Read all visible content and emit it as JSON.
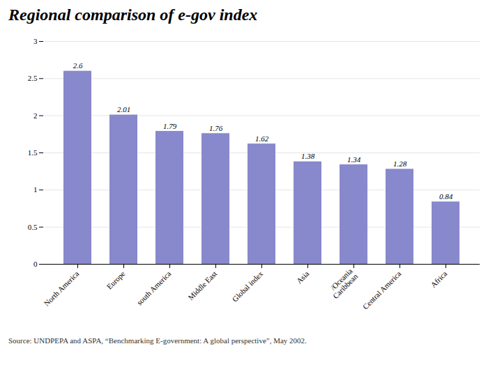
{
  "chart_data": {
    "type": "bar",
    "title": "Regional comparison of e-gov index",
    "categories": [
      "North America",
      "Europe",
      "south America",
      "Middle East",
      "Global index",
      "Asia",
      "/Oceania\nCaribbean",
      "Central America",
      "Africa"
    ],
    "values": [
      2.6,
      2.01,
      1.79,
      1.76,
      1.62,
      1.38,
      1.34,
      1.28,
      0.84
    ],
    "color": "#8888cc",
    "ylim": [
      0,
      3
    ],
    "yticks": [
      0,
      0.5,
      1,
      1.5,
      2,
      2.5,
      3
    ],
    "grid": true,
    "data_labels": true,
    "caption": "Source: UNDPEPA and ASPA, “Benchmarking E-government: A global perspective”, May 2002."
  }
}
